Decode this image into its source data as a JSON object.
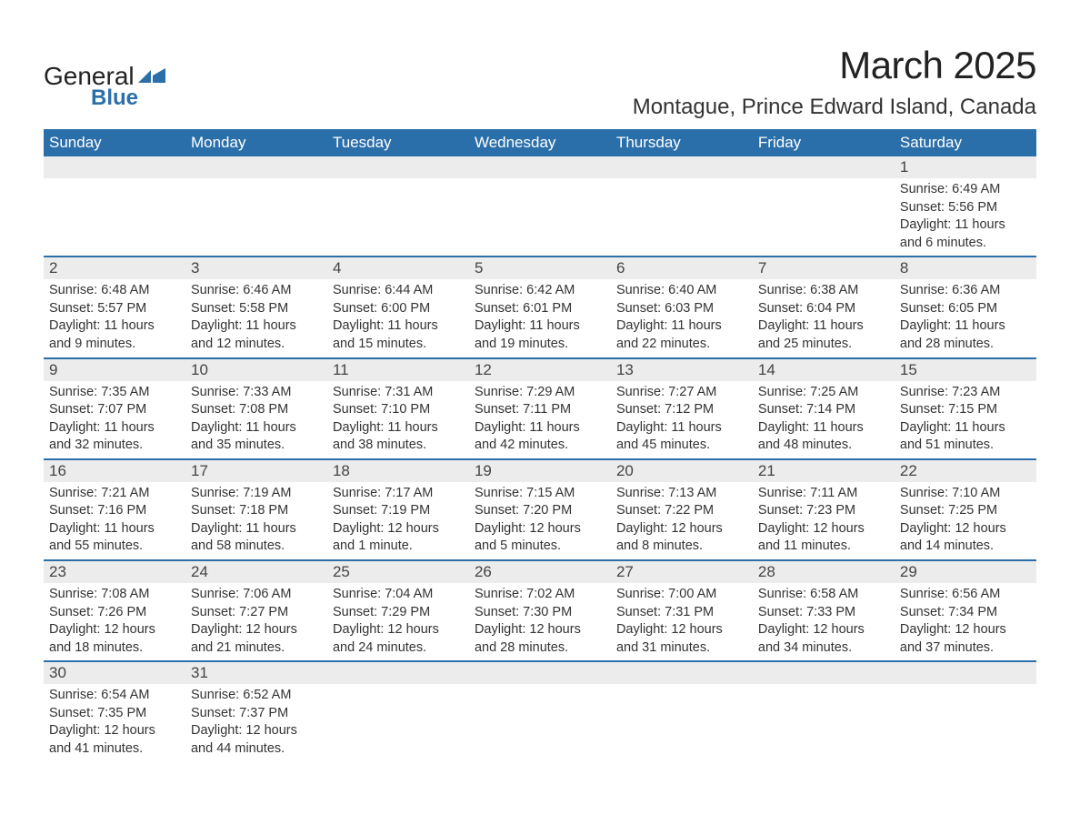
{
  "logo": {
    "text_top": "General",
    "text_bottom": "Blue",
    "shape_color": "#2b6faa"
  },
  "header": {
    "month_title": "March 2025",
    "location": "Montague, Prince Edward Island, Canada"
  },
  "colors": {
    "header_bg": "#2b6faa",
    "header_text": "#ffffff",
    "daynum_bg": "#ececec",
    "text": "#333333",
    "week_border": "#2b6faa"
  },
  "day_headers": [
    "Sunday",
    "Monday",
    "Tuesday",
    "Wednesday",
    "Thursday",
    "Friday",
    "Saturday"
  ],
  "weeks": [
    [
      null,
      null,
      null,
      null,
      null,
      null,
      {
        "num": "1",
        "sunrise": "Sunrise: 6:49 AM",
        "sunset": "Sunset: 5:56 PM",
        "daylight1": "Daylight: 11 hours",
        "daylight2": "and 6 minutes."
      }
    ],
    [
      {
        "num": "2",
        "sunrise": "Sunrise: 6:48 AM",
        "sunset": "Sunset: 5:57 PM",
        "daylight1": "Daylight: 11 hours",
        "daylight2": "and 9 minutes."
      },
      {
        "num": "3",
        "sunrise": "Sunrise: 6:46 AM",
        "sunset": "Sunset: 5:58 PM",
        "daylight1": "Daylight: 11 hours",
        "daylight2": "and 12 minutes."
      },
      {
        "num": "4",
        "sunrise": "Sunrise: 6:44 AM",
        "sunset": "Sunset: 6:00 PM",
        "daylight1": "Daylight: 11 hours",
        "daylight2": "and 15 minutes."
      },
      {
        "num": "5",
        "sunrise": "Sunrise: 6:42 AM",
        "sunset": "Sunset: 6:01 PM",
        "daylight1": "Daylight: 11 hours",
        "daylight2": "and 19 minutes."
      },
      {
        "num": "6",
        "sunrise": "Sunrise: 6:40 AM",
        "sunset": "Sunset: 6:03 PM",
        "daylight1": "Daylight: 11 hours",
        "daylight2": "and 22 minutes."
      },
      {
        "num": "7",
        "sunrise": "Sunrise: 6:38 AM",
        "sunset": "Sunset: 6:04 PM",
        "daylight1": "Daylight: 11 hours",
        "daylight2": "and 25 minutes."
      },
      {
        "num": "8",
        "sunrise": "Sunrise: 6:36 AM",
        "sunset": "Sunset: 6:05 PM",
        "daylight1": "Daylight: 11 hours",
        "daylight2": "and 28 minutes."
      }
    ],
    [
      {
        "num": "9",
        "sunrise": "Sunrise: 7:35 AM",
        "sunset": "Sunset: 7:07 PM",
        "daylight1": "Daylight: 11 hours",
        "daylight2": "and 32 minutes."
      },
      {
        "num": "10",
        "sunrise": "Sunrise: 7:33 AM",
        "sunset": "Sunset: 7:08 PM",
        "daylight1": "Daylight: 11 hours",
        "daylight2": "and 35 minutes."
      },
      {
        "num": "11",
        "sunrise": "Sunrise: 7:31 AM",
        "sunset": "Sunset: 7:10 PM",
        "daylight1": "Daylight: 11 hours",
        "daylight2": "and 38 minutes."
      },
      {
        "num": "12",
        "sunrise": "Sunrise: 7:29 AM",
        "sunset": "Sunset: 7:11 PM",
        "daylight1": "Daylight: 11 hours",
        "daylight2": "and 42 minutes."
      },
      {
        "num": "13",
        "sunrise": "Sunrise: 7:27 AM",
        "sunset": "Sunset: 7:12 PM",
        "daylight1": "Daylight: 11 hours",
        "daylight2": "and 45 minutes."
      },
      {
        "num": "14",
        "sunrise": "Sunrise: 7:25 AM",
        "sunset": "Sunset: 7:14 PM",
        "daylight1": "Daylight: 11 hours",
        "daylight2": "and 48 minutes."
      },
      {
        "num": "15",
        "sunrise": "Sunrise: 7:23 AM",
        "sunset": "Sunset: 7:15 PM",
        "daylight1": "Daylight: 11 hours",
        "daylight2": "and 51 minutes."
      }
    ],
    [
      {
        "num": "16",
        "sunrise": "Sunrise: 7:21 AM",
        "sunset": "Sunset: 7:16 PM",
        "daylight1": "Daylight: 11 hours",
        "daylight2": "and 55 minutes."
      },
      {
        "num": "17",
        "sunrise": "Sunrise: 7:19 AM",
        "sunset": "Sunset: 7:18 PM",
        "daylight1": "Daylight: 11 hours",
        "daylight2": "and 58 minutes."
      },
      {
        "num": "18",
        "sunrise": "Sunrise: 7:17 AM",
        "sunset": "Sunset: 7:19 PM",
        "daylight1": "Daylight: 12 hours",
        "daylight2": "and 1 minute."
      },
      {
        "num": "19",
        "sunrise": "Sunrise: 7:15 AM",
        "sunset": "Sunset: 7:20 PM",
        "daylight1": "Daylight: 12 hours",
        "daylight2": "and 5 minutes."
      },
      {
        "num": "20",
        "sunrise": "Sunrise: 7:13 AM",
        "sunset": "Sunset: 7:22 PM",
        "daylight1": "Daylight: 12 hours",
        "daylight2": "and 8 minutes."
      },
      {
        "num": "21",
        "sunrise": "Sunrise: 7:11 AM",
        "sunset": "Sunset: 7:23 PM",
        "daylight1": "Daylight: 12 hours",
        "daylight2": "and 11 minutes."
      },
      {
        "num": "22",
        "sunrise": "Sunrise: 7:10 AM",
        "sunset": "Sunset: 7:25 PM",
        "daylight1": "Daylight: 12 hours",
        "daylight2": "and 14 minutes."
      }
    ],
    [
      {
        "num": "23",
        "sunrise": "Sunrise: 7:08 AM",
        "sunset": "Sunset: 7:26 PM",
        "daylight1": "Daylight: 12 hours",
        "daylight2": "and 18 minutes."
      },
      {
        "num": "24",
        "sunrise": "Sunrise: 7:06 AM",
        "sunset": "Sunset: 7:27 PM",
        "daylight1": "Daylight: 12 hours",
        "daylight2": "and 21 minutes."
      },
      {
        "num": "25",
        "sunrise": "Sunrise: 7:04 AM",
        "sunset": "Sunset: 7:29 PM",
        "daylight1": "Daylight: 12 hours",
        "daylight2": "and 24 minutes."
      },
      {
        "num": "26",
        "sunrise": "Sunrise: 7:02 AM",
        "sunset": "Sunset: 7:30 PM",
        "daylight1": "Daylight: 12 hours",
        "daylight2": "and 28 minutes."
      },
      {
        "num": "27",
        "sunrise": "Sunrise: 7:00 AM",
        "sunset": "Sunset: 7:31 PM",
        "daylight1": "Daylight: 12 hours",
        "daylight2": "and 31 minutes."
      },
      {
        "num": "28",
        "sunrise": "Sunrise: 6:58 AM",
        "sunset": "Sunset: 7:33 PM",
        "daylight1": "Daylight: 12 hours",
        "daylight2": "and 34 minutes."
      },
      {
        "num": "29",
        "sunrise": "Sunrise: 6:56 AM",
        "sunset": "Sunset: 7:34 PM",
        "daylight1": "Daylight: 12 hours",
        "daylight2": "and 37 minutes."
      }
    ],
    [
      {
        "num": "30",
        "sunrise": "Sunrise: 6:54 AM",
        "sunset": "Sunset: 7:35 PM",
        "daylight1": "Daylight: 12 hours",
        "daylight2": "and 41 minutes."
      },
      {
        "num": "31",
        "sunrise": "Sunrise: 6:52 AM",
        "sunset": "Sunset: 7:37 PM",
        "daylight1": "Daylight: 12 hours",
        "daylight2": "and 44 minutes."
      },
      null,
      null,
      null,
      null,
      null
    ]
  ]
}
